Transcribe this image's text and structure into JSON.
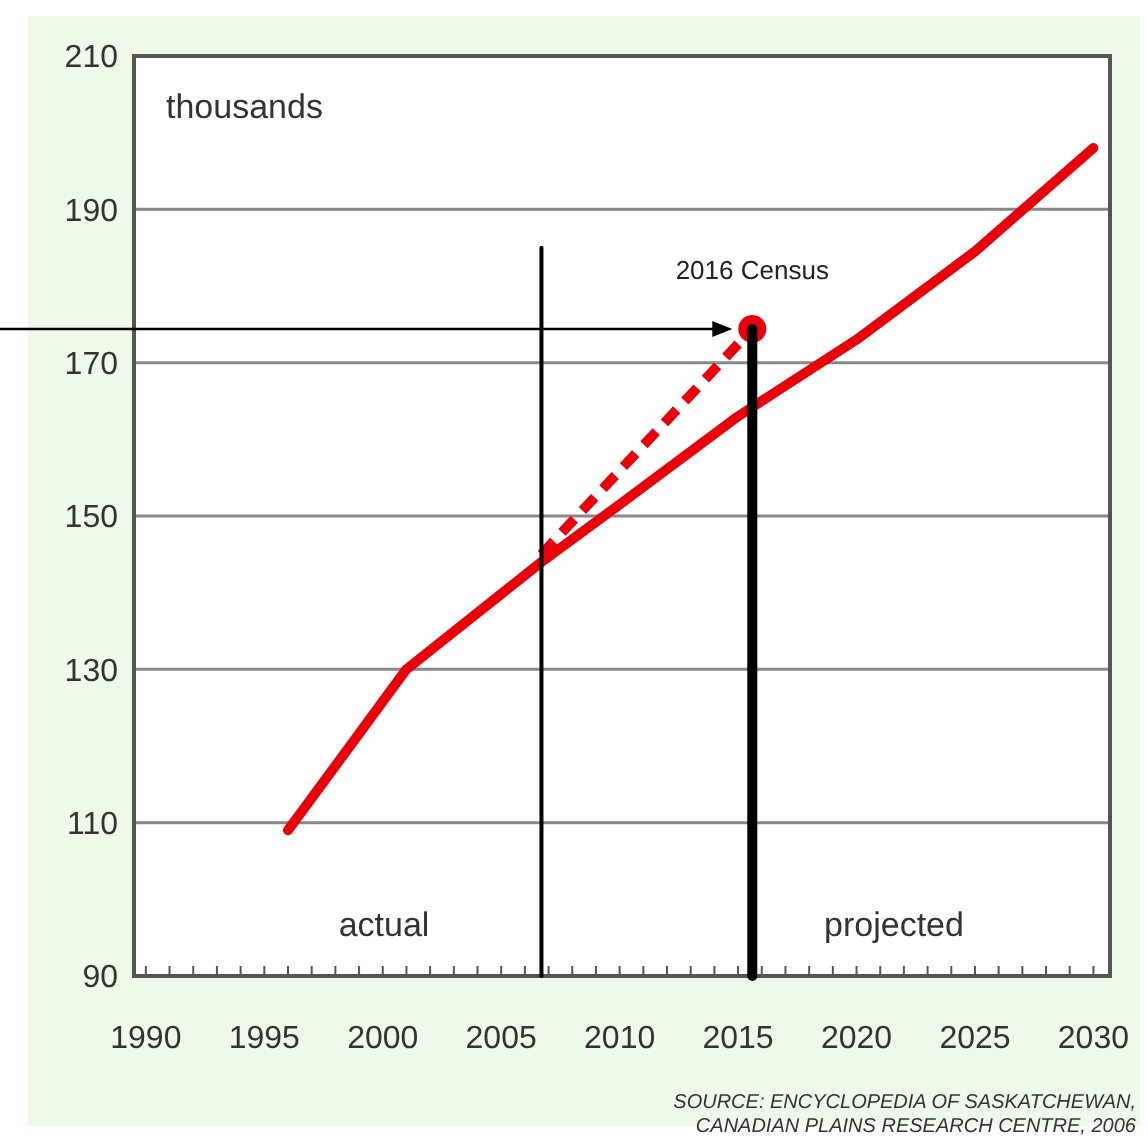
{
  "chart_data": {
    "type": "line",
    "xlim": [
      1989.5,
      2030.7
    ],
    "ylim": [
      90,
      210
    ],
    "xticks": [
      1990,
      1995,
      2000,
      2005,
      2010,
      2015,
      2020,
      2025,
      2030
    ],
    "yticks": [
      90,
      110,
      130,
      150,
      170,
      190,
      210
    ],
    "grid": "y",
    "series": [
      {
        "color": "#e8000b",
        "x": [
          1996,
          2001,
          2006.7,
          2010,
          2015,
          2020,
          2025,
          2030
        ],
        "values": [
          109,
          130,
          144,
          151.5,
          163,
          173,
          184.5,
          198
        ],
        "marker": "none",
        "line_style": "solid"
      },
      {
        "color": "#e8000b",
        "x": [
          2006.7,
          2015.6
        ],
        "values": [
          145,
          174.4
        ],
        "marker": "none",
        "line_style": "dashed"
      },
      {
        "type": "scatter",
        "color": "#e8000b",
        "x": [
          2015.6
        ],
        "values": [
          174.4
        ],
        "marker": "circle"
      },
      {
        "color": "#000000",
        "x": [
          2006.7,
          2006.7
        ],
        "values": [
          90,
          185
        ],
        "marker": "none",
        "line_style": "solid"
      },
      {
        "color": "#000000",
        "x": [
          2015.6,
          2015.6
        ],
        "values": [
          90,
          174.4
        ],
        "marker": "none",
        "line_style": "solid"
      }
    ],
    "annotations": [
      "thousands",
      "actual",
      "projected",
      {
        "text": "2016 Census",
        "x": 2015.6,
        "y": 174.4
      },
      "SOURCE: ENCYCLOPEDIA OF SASKATCHEWAN, CANADIAN PLAINS RESEARCH CENTRE, 2006"
    ]
  }
}
